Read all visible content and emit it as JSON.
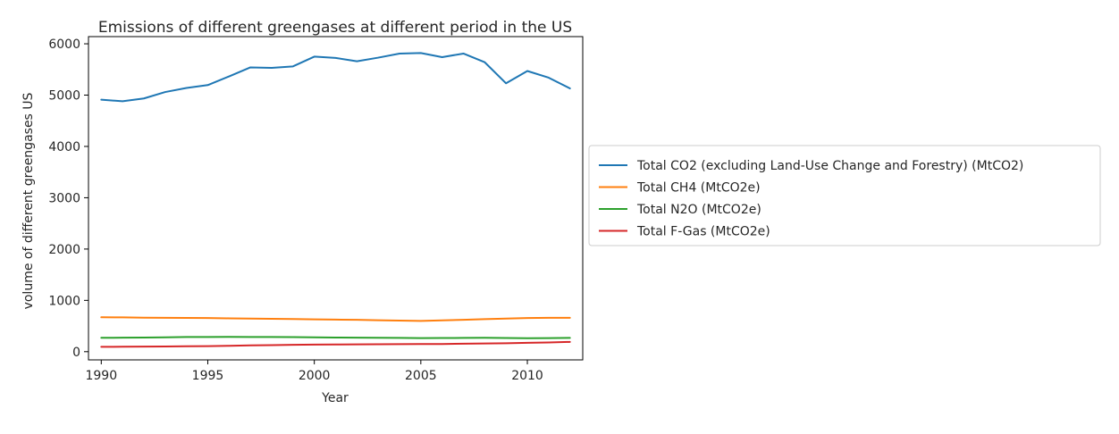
{
  "chart_data": {
    "type": "line",
    "title": "Emissions of different greengases at different period in the US",
    "xlabel": "Year",
    "ylabel": "volume of different greengases US",
    "xlim": [
      1989.4,
      2012.6
    ],
    "ylim": [
      -160,
      6140
    ],
    "xticks": [
      1990,
      1995,
      2000,
      2005,
      2010
    ],
    "yticks": [
      0,
      1000,
      2000,
      3000,
      4000,
      5000,
      6000
    ],
    "grid": false,
    "legend_position": "center-left outside right",
    "x": [
      1990,
      1991,
      1992,
      1993,
      1994,
      1995,
      1996,
      1997,
      1998,
      1999,
      2000,
      2001,
      2002,
      2003,
      2004,
      2005,
      2006,
      2007,
      2008,
      2009,
      2010,
      2011,
      2012
    ],
    "series": [
      {
        "name": "Total CO2 (excluding Land-Use Change and Forestry) (MtCO2)",
        "color": "#1f77b4",
        "values": [
          4910,
          4880,
          4935,
          5060,
          5140,
          5195,
          5365,
          5540,
          5530,
          5560,
          5750,
          5725,
          5660,
          5730,
          5810,
          5820,
          5740,
          5810,
          5640,
          5230,
          5470,
          5340,
          5130
        ]
      },
      {
        "name": "Total CH4 (MtCO2e)",
        "color": "#ff7f0e",
        "values": [
          670,
          668,
          663,
          660,
          657,
          655,
          650,
          645,
          640,
          636,
          630,
          625,
          620,
          612,
          606,
          600,
          610,
          622,
          635,
          645,
          655,
          660,
          660
        ]
      },
      {
        "name": "Total N2O (MtCO2e)",
        "color": "#2ca02c",
        "values": [
          270,
          272,
          276,
          280,
          285,
          287,
          288,
          287,
          285,
          284,
          280,
          276,
          272,
          270,
          268,
          265,
          266,
          268,
          270,
          266,
          262,
          265,
          268
        ]
      },
      {
        "name": "Total F-Gas (MtCO2e)",
        "color": "#d62728",
        "values": [
          95,
          96,
          98,
          102,
          105,
          108,
          115,
          122,
          128,
          133,
          138,
          140,
          142,
          144,
          146,
          148,
          150,
          155,
          160,
          165,
          172,
          180,
          190
        ]
      }
    ]
  }
}
